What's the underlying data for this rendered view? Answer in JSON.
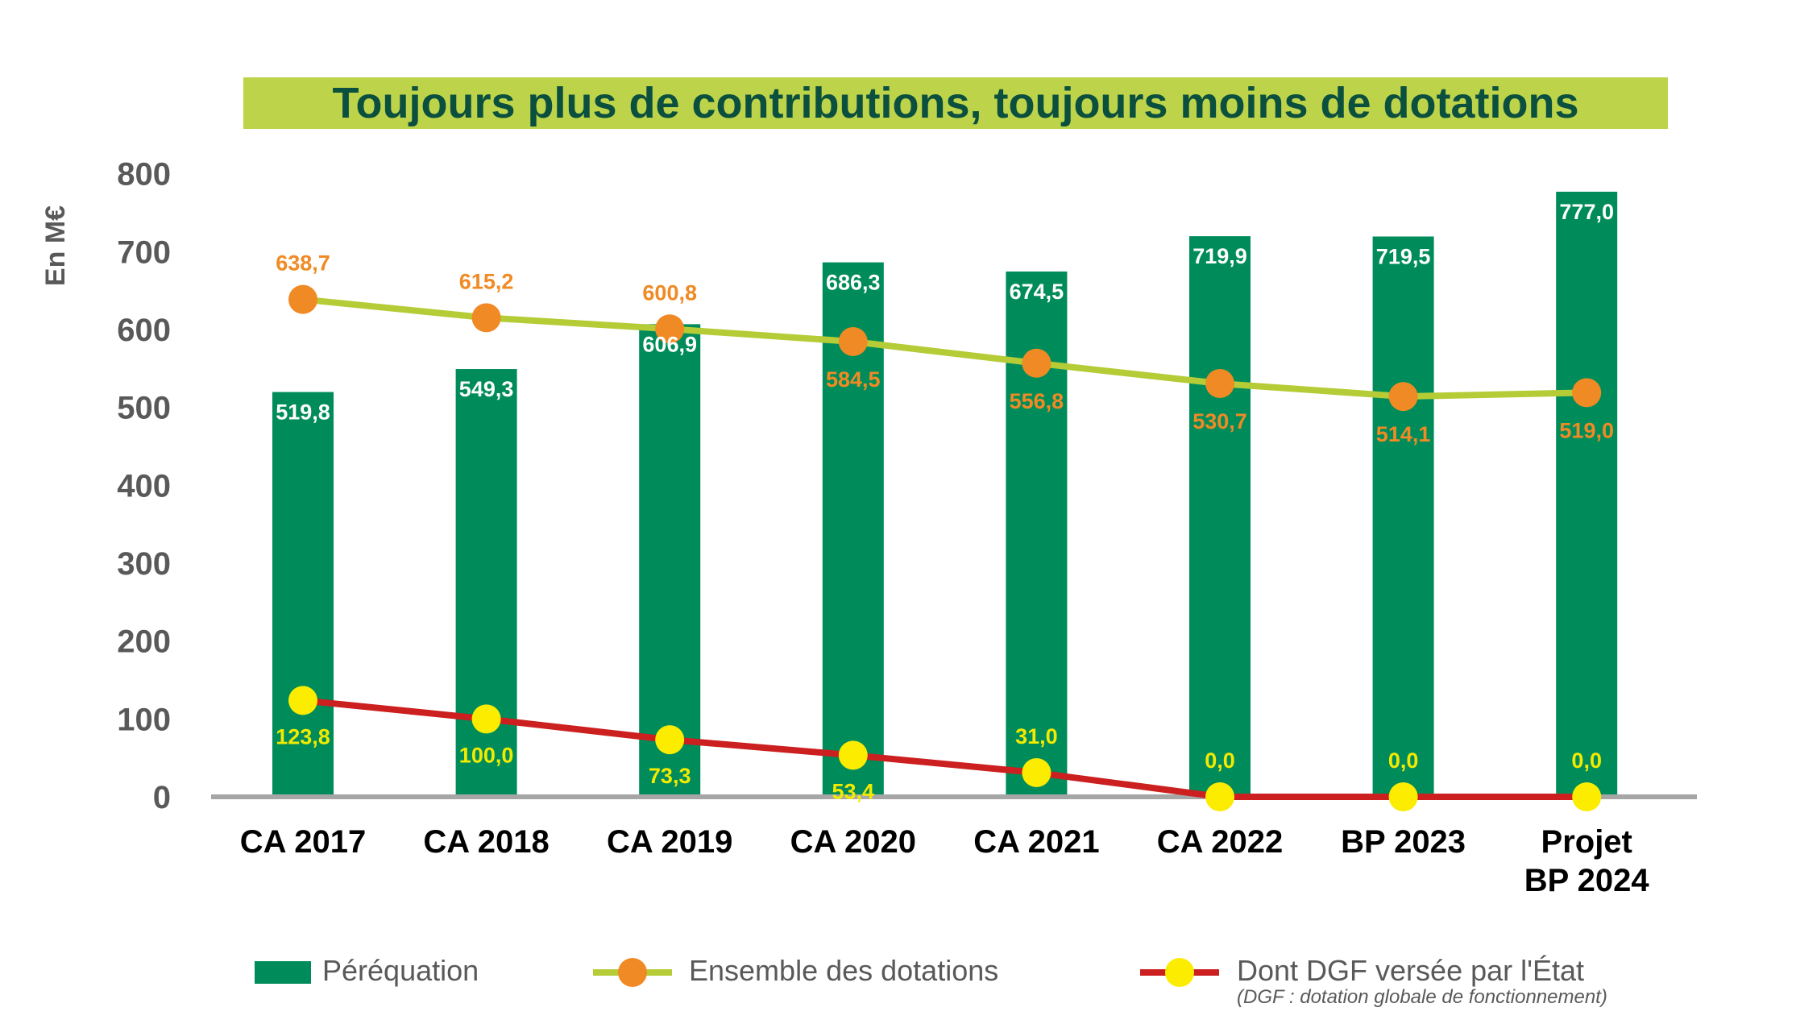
{
  "chart_data": {
    "type": "bar",
    "title": "Toujours plus de contributions, toujours moins de dotations",
    "ylabel": "En M€",
    "ylim": [
      0,
      800
    ],
    "yticks": [
      0,
      100,
      200,
      300,
      400,
      500,
      600,
      700,
      800
    ],
    "categories": [
      [
        "CA 2017"
      ],
      [
        "CA 2018"
      ],
      [
        "CA 2019"
      ],
      [
        "CA 2020"
      ],
      [
        "CA 2021"
      ],
      [
        "CA 2022"
      ],
      [
        "BP 2023"
      ],
      [
        "Projet",
        "BP 2024"
      ]
    ],
    "series": [
      {
        "name": "Péréquation",
        "type": "bar",
        "color": "#008c5a",
        "values": [
          519.8,
          549.3,
          606.9,
          686.3,
          674.5,
          719.9,
          719.5,
          777.0
        ],
        "labels": [
          "519,8",
          "549,3",
          "606,9",
          "686,3",
          "674,5",
          "719,9",
          "719,5",
          "777,0"
        ]
      },
      {
        "name": "Ensemble des dotations",
        "type": "line",
        "color": "#b5cc36",
        "marker_color": "#f08a24",
        "values": [
          638.7,
          615.2,
          600.8,
          584.5,
          556.8,
          530.7,
          514.1,
          519.0
        ],
        "labels": [
          "638,7",
          "615,2",
          "600,8",
          "584,5",
          "556,8",
          "530,7",
          "514,1",
          "519,0"
        ]
      },
      {
        "name": "Dont DGF versée par l'État",
        "type": "line",
        "color": "#cc1f1f",
        "marker_color": "#fbec00",
        "values": [
          123.8,
          100.0,
          73.3,
          53.4,
          31.0,
          0.0,
          0.0,
          0.0
        ],
        "labels": [
          "123,8",
          "100,0",
          "73,3",
          "53,4",
          "31,0",
          "0,0",
          "0,0",
          "0,0"
        ]
      }
    ],
    "legend": {
      "placement": "bottom",
      "note": "(DGF : dotation globale de fonctionnement)"
    },
    "colors": {
      "title_bg": "#bdd44a",
      "title_text": "#0b4f3e",
      "axis": "#a6a6a6",
      "tick_text": "#595959"
    }
  }
}
